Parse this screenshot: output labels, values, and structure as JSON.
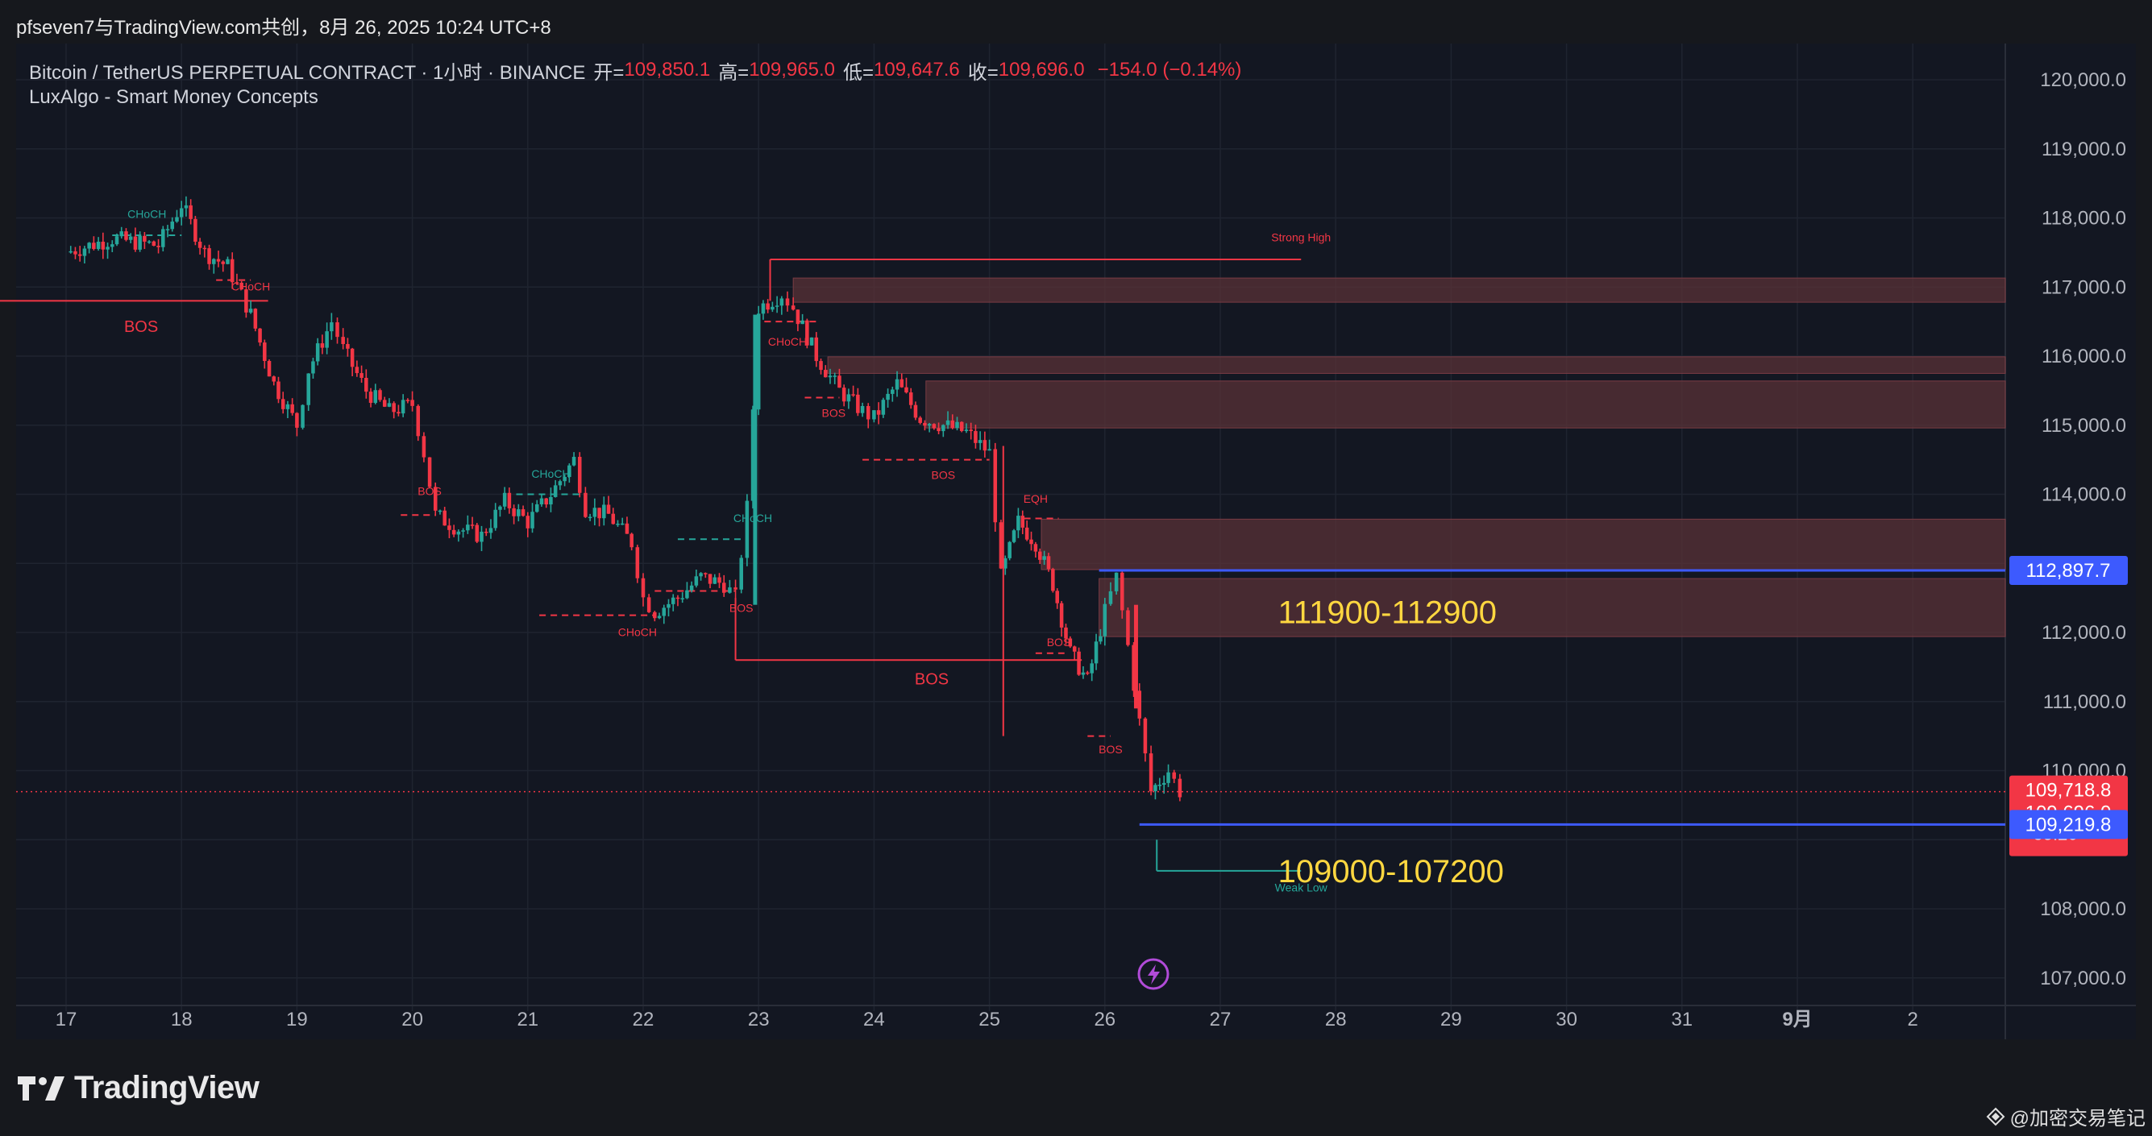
{
  "header": {
    "caption": "pfseven7与TradingView.com共创，8月 26, 2025 10:24 UTC+8"
  },
  "legend": {
    "symbol": "Bitcoin / TetherUS PERPETUAL CONTRACT · 1小时 · BINANCE",
    "open_label": "开=",
    "open": "109,850.1",
    "high_label": "高=",
    "high": "109,965.0",
    "low_label": "低=",
    "low": "109,647.6",
    "close_label": "收=",
    "close": "109,696.0",
    "change": "−154.0 (−0.14%)",
    "indicator": "LuxAlgo - Smart Money Concepts"
  },
  "footer": {
    "brand": "TradingView",
    "watermark": "@加密交易笔记"
  },
  "colors": {
    "background": "#131722",
    "bull": "#26a69a",
    "bear": "#f23645",
    "zone": "#5c3238",
    "level_line": "#3d5afe",
    "annotation": "#ffd740"
  },
  "chart_data": {
    "type": "candlestick",
    "y_ticks": [
      "120,000.0",
      "119,000.0",
      "118,000.0",
      "117,000.0",
      "116,000.0",
      "115,000.0",
      "114,000.0",
      "113,000.0",
      "112,000.0",
      "111,000.0",
      "110,000.0",
      "109,000.0",
      "108,000.0",
      "107,000.0"
    ],
    "x_ticks": [
      "17",
      "18",
      "19",
      "20",
      "21",
      "22",
      "23",
      "24",
      "25",
      "26",
      "27",
      "28",
      "29",
      "30",
      "31",
      "9月",
      "2"
    ],
    "ylim": [
      106800,
      120500
    ],
    "series_close_path": [
      [
        0.0,
        117500
      ],
      [
        0.4,
        117700
      ],
      [
        0.8,
        117600
      ],
      [
        1.0,
        118200
      ],
      [
        1.2,
        117500
      ],
      [
        1.4,
        117300
      ],
      [
        1.6,
        116600
      ],
      [
        1.8,
        115600
      ],
      [
        2.0,
        115000
      ],
      [
        2.1,
        115800
      ],
      [
        2.3,
        116500
      ],
      [
        2.4,
        116100
      ],
      [
        2.6,
        115500
      ],
      [
        2.8,
        115200
      ],
      [
        3.0,
        115300
      ],
      [
        3.1,
        114600
      ],
      [
        3.2,
        113700
      ],
      [
        3.4,
        113500
      ],
      [
        3.6,
        113400
      ],
      [
        3.8,
        113900
      ],
      [
        4.0,
        113600
      ],
      [
        4.2,
        114000
      ],
      [
        4.4,
        114500
      ],
      [
        4.5,
        113800
      ],
      [
        4.7,
        113700
      ],
      [
        4.9,
        113300
      ],
      [
        5.0,
        112500
      ],
      [
        5.1,
        112300
      ],
      [
        5.3,
        112500
      ],
      [
        5.5,
        112800
      ],
      [
        5.7,
        112700
      ],
      [
        5.8,
        112500
      ],
      [
        5.9,
        113800
      ],
      [
        6.0,
        116700
      ],
      [
        6.2,
        116900
      ],
      [
        6.3,
        116700
      ],
      [
        6.5,
        116000
      ],
      [
        6.7,
        115500
      ],
      [
        6.9,
        115200
      ],
      [
        7.0,
        115100
      ],
      [
        7.2,
        115600
      ],
      [
        7.4,
        115100
      ],
      [
        7.6,
        115000
      ],
      [
        7.8,
        114900
      ],
      [
        8.0,
        114600
      ],
      [
        8.1,
        112800
      ],
      [
        8.25,
        113600
      ],
      [
        8.4,
        113300
      ],
      [
        8.55,
        112700
      ],
      [
        8.7,
        111700
      ],
      [
        8.85,
        111300
      ],
      [
        9.0,
        112300
      ],
      [
        9.1,
        112800
      ],
      [
        9.2,
        111800
      ],
      [
        9.3,
        110700
      ],
      [
        9.4,
        109700
      ],
      [
        9.55,
        110000
      ],
      [
        9.65,
        109700
      ]
    ],
    "last_close": "109,696.0",
    "countdown": "35:26",
    "price_labels": [
      {
        "value": 112897.7,
        "label": "112,897.7",
        "color": "#3d5afe"
      },
      {
        "value": 109718.8,
        "label": "109,718.8",
        "color": "#f23645"
      },
      {
        "value": 109219.8,
        "label": "109,219.8",
        "color": "#3d5afe"
      }
    ],
    "zones": [
      {
        "from": 116780,
        "to": 117130
      },
      {
        "from": 115750,
        "to": 115990
      },
      {
        "from": 114960,
        "to": 115640
      },
      {
        "from": 112910,
        "to": 113640
      },
      {
        "from": 111940,
        "to": 112780
      }
    ],
    "levels": [
      {
        "value": 112897.7,
        "x_from": 8.95
      },
      {
        "value": 109219.8,
        "x_from": 9.3
      }
    ],
    "annotations": [
      {
        "text": "111900-112900",
        "x": 10.5,
        "y": 112300
      },
      {
        "text": "109000-107200",
        "x": 10.5,
        "y": 108550
      }
    ],
    "smc_labels": [
      {
        "text": "CHoCH",
        "x": 0.7,
        "y": 118000,
        "color": "bull"
      },
      {
        "text": "CHoCH",
        "x": 1.6,
        "y": 116950,
        "color": "bear"
      },
      {
        "text": "BOS",
        "x": 0.65,
        "y": 116350,
        "color": "bear"
      },
      {
        "text": "BOS",
        "x": 3.15,
        "y": 113990,
        "color": "bear"
      },
      {
        "text": "CHoCH",
        "x": 4.2,
        "y": 114240,
        "color": "bull"
      },
      {
        "text": "CHoCH",
        "x": 4.95,
        "y": 111950,
        "color": "bear"
      },
      {
        "text": "CHoCH",
        "x": 5.95,
        "y": 113600,
        "color": "bull"
      },
      {
        "text": "BOS",
        "x": 5.85,
        "y": 112300,
        "color": "bear"
      },
      {
        "text": "BOS",
        "x": 7.5,
        "y": 111250,
        "color": "bear"
      },
      {
        "text": "Strong High",
        "x": 10.7,
        "y": 117660,
        "color": "bear"
      },
      {
        "text": "CHoCH",
        "x": 6.25,
        "y": 116150,
        "color": "bear"
      },
      {
        "text": "BOS",
        "x": 6.65,
        "y": 115120,
        "color": "bear"
      },
      {
        "text": "BOS",
        "x": 7.6,
        "y": 114220,
        "color": "bear"
      },
      {
        "text": "EQH",
        "x": 8.4,
        "y": 113880,
        "color": "bear"
      },
      {
        "text": "BOS",
        "x": 8.6,
        "y": 111800,
        "color": "bear"
      },
      {
        "text": "BOS",
        "x": 9.05,
        "y": 110250,
        "color": "bear"
      },
      {
        "text": "Weak Low",
        "x": 10.7,
        "y": 108250,
        "color": "bull"
      }
    ]
  }
}
